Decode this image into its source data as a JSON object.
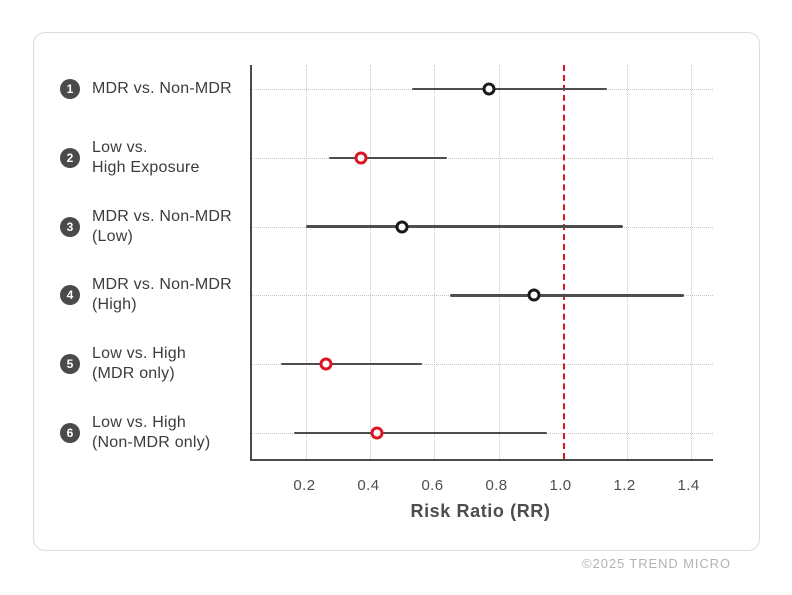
{
  "footer": {
    "copyright": "©2025 TREND MICRO"
  },
  "colors": {
    "accent_red": "#db1623",
    "point_black": "#1a1a1a",
    "ci_line": "#4d4d4d",
    "axis": "#4a4a4a",
    "badge_bg": "#4a4a4a",
    "grid": "#c9c9c9",
    "card_border": "#dcdcdc",
    "footer_text": "#b3b3b3"
  },
  "chart_data": {
    "type": "scatter",
    "subtype": "forest_plot",
    "title": "",
    "xlabel": "Risk Ratio (RR)",
    "ylabel": "",
    "xlim": [
      0.03,
      1.47
    ],
    "xticks": [
      0.2,
      0.4,
      0.6,
      0.8,
      1.0,
      1.2,
      1.4
    ],
    "xtick_labels": [
      "0.2",
      "0.4",
      "0.6",
      "0.8",
      "1.0",
      "1.2",
      "1.4"
    ],
    "grid": "dotted vertical at each tick, dotted horizontal guide per row",
    "legend": "none",
    "reference_line": {
      "x": 1.0,
      "style": "dashed",
      "color": "#db1623"
    },
    "rows": [
      {
        "num": "1",
        "label_lines": [
          "MDR vs. Non-MDR"
        ],
        "rr": 0.77,
        "ci_low": 0.53,
        "ci_high": 1.14,
        "point_color": "black"
      },
      {
        "num": "2",
        "label_lines": [
          "Low vs.",
          "High Exposure"
        ],
        "rr": 0.37,
        "ci_low": 0.27,
        "ci_high": 0.64,
        "point_color": "red"
      },
      {
        "num": "3",
        "label_lines": [
          "MDR vs. Non-MDR",
          "(Low)"
        ],
        "rr": 0.5,
        "ci_low": 0.2,
        "ci_high": 1.19,
        "point_color": "black"
      },
      {
        "num": "4",
        "label_lines": [
          "MDR vs. Non-MDR",
          "(High)"
        ],
        "rr": 0.91,
        "ci_low": 0.65,
        "ci_high": 1.38,
        "point_color": "black"
      },
      {
        "num": "5",
        "label_lines": [
          "Low vs. High",
          "(MDR only)"
        ],
        "rr": 0.26,
        "ci_low": 0.12,
        "ci_high": 0.56,
        "point_color": "red"
      },
      {
        "num": "6",
        "label_lines": [
          "Low vs. High",
          "(Non-MDR only)"
        ],
        "rr": 0.42,
        "ci_low": 0.16,
        "ci_high": 0.95,
        "point_color": "red"
      }
    ]
  }
}
